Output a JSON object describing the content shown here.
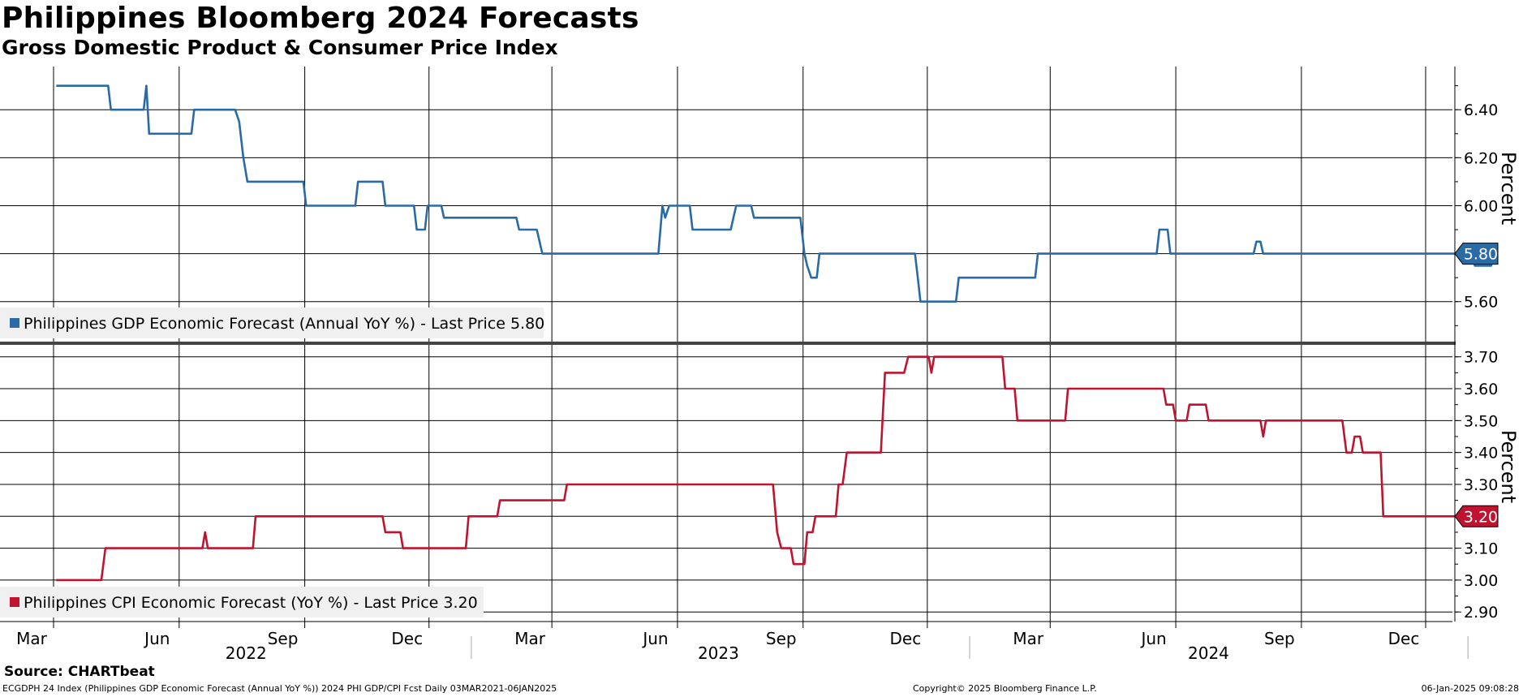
{
  "header": {
    "title": "Philippines Bloomberg 2024 Forecasts",
    "subtitle": "Gross Domestic Product & Consumer Price Index"
  },
  "footer": {
    "source": "Source: CHARTbeat",
    "description": "ECGDPH 24 Index (Philippines GDP Economic Forecast (Annual YoY %)) 2024 PHI GDP/CPI Fcst  Daily 03MAR2021-06JAN2025",
    "copyright": "Copyright© 2025 Bloomberg Finance L.P.",
    "timestamp": "06-Jan-2025 09:08:28"
  },
  "colors": {
    "gdp": "#2a6aa5",
    "cpi": "#c0132f",
    "grid": "#000000",
    "legend_bg": "#f0f0f0"
  },
  "chart_data": [
    {
      "type": "line",
      "ylabel": "Percent",
      "ylim": [
        5.43,
        6.58
      ],
      "yticks": [
        "5.60",
        "5.80",
        "6.00",
        "6.20",
        "6.40"
      ],
      "last_value": "5.80",
      "legend": "Philippines GDP Economic Forecast (Annual YoY %) - Last Price 5.80",
      "series": [
        {
          "name": "Philippines GDP Economic Forecast (Annual YoY %)",
          "points": [
            [
              "2021-03-03",
              6.5
            ],
            [
              "2021-04-10",
              6.5
            ],
            [
              "2021-04-12",
              6.4
            ],
            [
              "2021-05-06",
              6.4
            ],
            [
              "2021-05-08",
              6.5
            ],
            [
              "2021-05-10",
              6.3
            ],
            [
              "2021-06-10",
              6.3
            ],
            [
              "2021-06-12",
              6.4
            ],
            [
              "2021-07-12",
              6.4
            ],
            [
              "2021-07-15",
              6.35
            ],
            [
              "2021-07-18",
              6.2
            ],
            [
              "2021-07-21",
              6.1
            ],
            [
              "2021-08-31",
              6.1
            ],
            [
              "2021-09-02",
              6.0
            ],
            [
              "2021-10-08",
              6.0
            ],
            [
              "2021-10-10",
              6.1
            ],
            [
              "2021-10-28",
              6.1
            ],
            [
              "2021-10-30",
              6.0
            ],
            [
              "2021-11-20",
              6.0
            ],
            [
              "2021-11-22",
              5.9
            ],
            [
              "2021-11-28",
              5.9
            ],
            [
              "2021-11-30",
              6.0
            ],
            [
              "2021-12-10",
              6.0
            ],
            [
              "2021-12-12",
              5.95
            ],
            [
              "2022-02-03",
              5.95
            ],
            [
              "2022-02-05",
              5.9
            ],
            [
              "2022-02-18",
              5.9
            ],
            [
              "2022-02-22",
              5.8
            ],
            [
              "2022-05-18",
              5.8
            ],
            [
              "2022-05-21",
              6.0
            ],
            [
              "2022-05-23",
              5.95
            ],
            [
              "2022-05-26",
              6.0
            ],
            [
              "2022-06-10",
              6.0
            ],
            [
              "2022-06-12",
              5.9
            ],
            [
              "2022-07-10",
              5.9
            ],
            [
              "2022-07-12",
              5.95
            ],
            [
              "2022-07-14",
              6.0
            ],
            [
              "2022-07-25",
              6.0
            ],
            [
              "2022-07-27",
              5.95
            ],
            [
              "2022-08-30",
              5.95
            ],
            [
              "2022-09-02",
              5.8
            ],
            [
              "2022-09-04",
              5.75
            ],
            [
              "2022-09-07",
              5.7
            ],
            [
              "2022-09-11",
              5.7
            ],
            [
              "2022-09-13",
              5.8
            ],
            [
              "2022-11-22",
              5.8
            ],
            [
              "2022-11-24",
              5.7
            ],
            [
              "2022-11-26",
              5.6
            ],
            [
              "2022-12-22",
              5.6
            ],
            [
              "2022-12-24",
              5.7
            ],
            [
              "2023-02-18",
              5.7
            ],
            [
              "2023-02-20",
              5.8
            ],
            [
              "2023-05-18",
              5.8
            ],
            [
              "2023-05-20",
              5.9
            ],
            [
              "2023-05-26",
              5.9
            ],
            [
              "2023-05-28",
              5.8
            ],
            [
              "2023-07-28",
              5.8
            ],
            [
              "2023-07-30",
              5.85
            ],
            [
              "2023-08-02",
              5.85
            ],
            [
              "2023-08-04",
              5.8
            ],
            [
              "2024-01-04",
              5.8
            ],
            [
              "2024-01-06",
              5.75
            ],
            [
              "2024-01-18",
              5.75
            ],
            [
              "2024-01-20",
              5.8
            ]
          ]
        }
      ]
    },
    {
      "type": "line",
      "ylabel": "Percent",
      "ylim": [
        2.87,
        3.74
      ],
      "yticks": [
        "2.90",
        "3.00",
        "3.10",
        "3.20",
        "3.30",
        "3.40",
        "3.50",
        "3.60",
        "3.70"
      ],
      "last_value": "3.20",
      "legend": "Philippines CPI Economic Forecast (YoY %) - Last Price 3.20",
      "series": [
        {
          "name": "Philippines CPI Economic Forecast (YoY %)",
          "points": [
            [
              "2021-03-03",
              3.0
            ],
            [
              "2021-04-05",
              3.0
            ],
            [
              "2021-04-08",
              3.1
            ],
            [
              "2021-06-18",
              3.1
            ],
            [
              "2021-06-20",
              3.15
            ],
            [
              "2021-06-22",
              3.1
            ],
            [
              "2021-07-25",
              3.1
            ],
            [
              "2021-07-27",
              3.2
            ],
            [
              "2021-10-28",
              3.2
            ],
            [
              "2021-10-30",
              3.15
            ],
            [
              "2021-11-10",
              3.15
            ],
            [
              "2021-11-12",
              3.1
            ],
            [
              "2021-12-28",
              3.1
            ],
            [
              "2021-12-30",
              3.2
            ],
            [
              "2022-01-20",
              3.2
            ],
            [
              "2022-01-22",
              3.25
            ],
            [
              "2022-03-10",
              3.25
            ],
            [
              "2022-03-12",
              3.3
            ],
            [
              "2022-08-10",
              3.3
            ],
            [
              "2022-08-13",
              3.15
            ],
            [
              "2022-08-16",
              3.1
            ],
            [
              "2022-08-23",
              3.1
            ],
            [
              "2022-08-25",
              3.05
            ],
            [
              "2022-09-02",
              3.05
            ],
            [
              "2022-09-04",
              3.15
            ],
            [
              "2022-09-08",
              3.15
            ],
            [
              "2022-09-10",
              3.2
            ],
            [
              "2022-09-25",
              3.2
            ],
            [
              "2022-09-27",
              3.3
            ],
            [
              "2022-09-30",
              3.3
            ],
            [
              "2022-10-03",
              3.4
            ],
            [
              "2022-10-28",
              3.4
            ],
            [
              "2022-10-31",
              3.65
            ],
            [
              "2022-11-14",
              3.65
            ],
            [
              "2022-11-17",
              3.7
            ],
            [
              "2022-12-02",
              3.7
            ],
            [
              "2022-12-04",
              3.65
            ],
            [
              "2022-12-06",
              3.7
            ],
            [
              "2023-01-25",
              3.7
            ],
            [
              "2023-01-27",
              3.6
            ],
            [
              "2023-02-03",
              3.6
            ],
            [
              "2023-02-05",
              3.5
            ],
            [
              "2023-03-12",
              3.5
            ],
            [
              "2023-03-14",
              3.6
            ],
            [
              "2023-05-23",
              3.6
            ],
            [
              "2023-05-25",
              3.55
            ],
            [
              "2023-05-30",
              3.55
            ],
            [
              "2023-06-01",
              3.5
            ],
            [
              "2023-06-09",
              3.5
            ],
            [
              "2023-06-11",
              3.55
            ],
            [
              "2023-06-23",
              3.55
            ],
            [
              "2023-06-25",
              3.5
            ],
            [
              "2023-08-02",
              3.5
            ],
            [
              "2023-08-04",
              3.45
            ],
            [
              "2023-08-06",
              3.5
            ],
            [
              "2023-10-01",
              3.5
            ],
            [
              "2023-10-04",
              3.4
            ],
            [
              "2023-10-08",
              3.4
            ],
            [
              "2023-10-10",
              3.45
            ],
            [
              "2023-10-14",
              3.45
            ],
            [
              "2023-10-16",
              3.4
            ],
            [
              "2023-10-29",
              3.4
            ],
            [
              "2023-10-31",
              3.2
            ],
            [
              "2024-01-20",
              3.2
            ]
          ]
        }
      ]
    }
  ],
  "x_axis": {
    "start": "2021-03-03",
    "end": "2024-01-20",
    "month_ticks": [
      {
        "label": "Mar",
        "date": "2021-03-01"
      },
      {
        "label": "Jun",
        "date": "2021-06-01"
      },
      {
        "label": "Sep",
        "date": "2021-09-01"
      },
      {
        "label": "Dec",
        "date": "2021-12-01"
      },
      {
        "label": "Mar",
        "date": "2022-03-01"
      },
      {
        "label": "Jun",
        "date": "2022-06-01"
      },
      {
        "label": "Sep",
        "date": "2022-09-01"
      },
      {
        "label": "Dec",
        "date": "2022-12-01"
      },
      {
        "label": "Mar",
        "date": "2023-03-01"
      },
      {
        "label": "Jun",
        "date": "2023-06-01"
      },
      {
        "label": "Sep",
        "date": "2023-09-01"
      },
      {
        "label": "Dec",
        "date": "2023-12-01"
      }
    ],
    "year_labels": [
      "2022",
      "2023",
      "2024"
    ]
  }
}
